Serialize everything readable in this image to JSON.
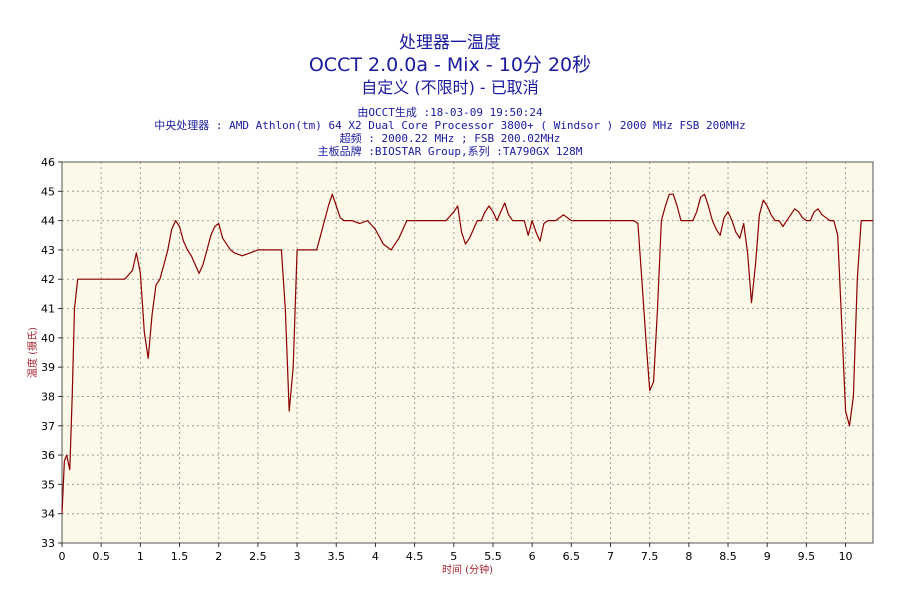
{
  "header": {
    "title": "处理器一温度",
    "subtitle": "OCCT 2.0.0a - Mix - 10分 20秒",
    "status": "自定义 (不限时) - 已取消",
    "info": [
      "由OCCT生成 :18-03-09 19:50:24",
      "中央处理器 : AMD Athlon(tm) 64 X2 Dual Core Processor 3800+ ( Windsor ) 2000 MHz FSB 200MHz",
      "超频 : 2000.22 MHz ; FSB 200.02MHz",
      "主板品牌 :BIOSTAR Group,系列 :TA790GX 128M"
    ]
  },
  "colors": {
    "background": "#fcf9e8",
    "line": "#8b0000",
    "grid": "#a0a0a0",
    "text": "#1a1a9c",
    "ylabel": "#a0202a"
  },
  "chart_data": {
    "type": "line",
    "xlabel": "时间 (分钟)",
    "ylabel": "温度 (摄氏)",
    "xlim": [
      0,
      10.35
    ],
    "ylim": [
      33,
      46
    ],
    "xticks": [
      0,
      0.5,
      1,
      1.5,
      2,
      2.5,
      3,
      3.5,
      4,
      4.5,
      5,
      5.5,
      6,
      6.5,
      7,
      7.5,
      8,
      8.5,
      9,
      9.5,
      10
    ],
    "yticks": [
      33,
      34,
      35,
      36,
      37,
      38,
      39,
      40,
      41,
      42,
      43,
      44,
      45,
      46
    ],
    "grid": true,
    "series": [
      {
        "x": [
          0,
          0.03,
          0.06,
          0.1,
          0.13,
          0.16,
          0.2,
          0.25,
          0.3,
          0.4,
          0.5,
          0.6,
          0.8,
          0.9,
          0.95,
          1.0,
          1.05,
          1.1,
          1.15,
          1.2,
          1.25,
          1.3,
          1.35,
          1.4,
          1.45,
          1.5,
          1.55,
          1.6,
          1.65,
          1.7,
          1.75,
          1.8,
          1.85,
          1.9,
          1.95,
          2.0,
          2.05,
          2.1,
          2.15,
          2.2,
          2.3,
          2.4,
          2.5,
          2.6,
          2.7,
          2.8,
          2.85,
          2.9,
          2.95,
          3.0,
          3.1,
          3.2,
          3.25,
          3.3,
          3.35,
          3.4,
          3.45,
          3.5,
          3.55,
          3.6,
          3.7,
          3.8,
          3.9,
          4.0,
          4.1,
          4.2,
          4.3,
          4.4,
          4.5,
          4.6,
          4.7,
          4.8,
          4.9,
          5.0,
          5.05,
          5.1,
          5.15,
          5.2,
          5.25,
          5.3,
          5.35,
          5.4,
          5.45,
          5.5,
          5.55,
          5.6,
          5.65,
          5.7,
          5.75,
          5.8,
          5.85,
          5.9,
          5.95,
          6.0,
          6.05,
          6.1,
          6.15,
          6.2,
          6.3,
          6.4,
          6.45,
          6.5,
          6.6,
          6.7,
          6.8,
          6.9,
          7.0,
          7.1,
          7.2,
          7.3,
          7.35,
          7.4,
          7.45,
          7.5,
          7.55,
          7.6,
          7.65,
          7.7,
          7.75,
          7.8,
          7.85,
          7.9,
          7.95,
          8.0,
          8.05,
          8.1,
          8.15,
          8.2,
          8.25,
          8.3,
          8.35,
          8.4,
          8.45,
          8.5,
          8.55,
          8.6,
          8.65,
          8.7,
          8.75,
          8.8,
          8.85,
          8.9,
          8.95,
          9.0,
          9.05,
          9.1,
          9.15,
          9.2,
          9.25,
          9.3,
          9.35,
          9.4,
          9.45,
          9.5,
          9.55,
          9.6,
          9.65,
          9.7,
          9.75,
          9.8,
          9.85,
          9.9,
          9.95,
          10.0,
          10.05,
          10.1,
          10.15,
          10.2,
          10.25,
          10.3,
          10.35
        ],
        "y": [
          34,
          35.8,
          36,
          35.5,
          38,
          41,
          42,
          42,
          42,
          42,
          42,
          42,
          42,
          42.3,
          42.9,
          42.2,
          40.2,
          39.3,
          40.8,
          41.8,
          42,
          42.5,
          43,
          43.7,
          44,
          43.8,
          43.3,
          43,
          42.8,
          42.5,
          42.2,
          42.5,
          43,
          43.5,
          43.8,
          43.9,
          43.4,
          43.2,
          43,
          42.9,
          42.8,
          42.9,
          43,
          43,
          43,
          43,
          41,
          37.5,
          39,
          43,
          43,
          43,
          43,
          43.5,
          44,
          44.5,
          44.9,
          44.5,
          44.1,
          44,
          44,
          43.9,
          44,
          43.7,
          43.2,
          43,
          43.4,
          44,
          44,
          44,
          44,
          44,
          44,
          44.3,
          44.5,
          43.6,
          43.2,
          43.4,
          43.7,
          44,
          44,
          44.3,
          44.5,
          44.3,
          44,
          44.3,
          44.6,
          44.2,
          44,
          44,
          44,
          44,
          43.5,
          44,
          43.6,
          43.3,
          43.9,
          44,
          44,
          44.2,
          44.1,
          44,
          44,
          44,
          44,
          44,
          44,
          44,
          44,
          44,
          43.9,
          42,
          40,
          38.2,
          38.5,
          41,
          44,
          44.5,
          44.9,
          44.9,
          44.5,
          44,
          44,
          44,
          44,
          44.3,
          44.8,
          44.9,
          44.5,
          44,
          43.7,
          43.5,
          44.1,
          44.3,
          44,
          43.6,
          43.4,
          43.9,
          42.9,
          41.2,
          42.5,
          44.2,
          44.7,
          44.5,
          44.2,
          44,
          44,
          43.8,
          44,
          44.2,
          44.4,
          44.3,
          44.1,
          44,
          44,
          44.3,
          44.4,
          44.2,
          44.1,
          44,
          44,
          43.5,
          40.5,
          37.5,
          37,
          38,
          42,
          44,
          44,
          44,
          44
        ]
      }
    ]
  }
}
